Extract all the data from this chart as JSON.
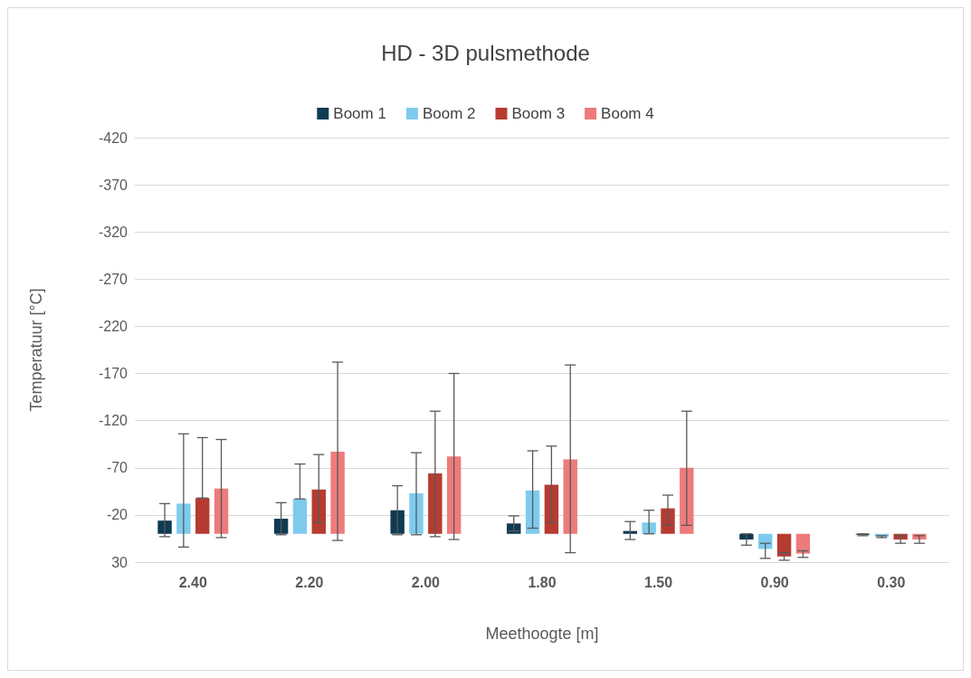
{
  "chart_data": {
    "type": "bar",
    "title": "HD - 3D pulsmethode",
    "xlabel": "Meethoogte [m]",
    "ylabel": "Temperatuur [°C]",
    "categories": [
      "2.40",
      "2.20",
      "2.00",
      "1.80",
      "1.50",
      "0.90",
      "0.30"
    ],
    "series": [
      {
        "name": "Boom 1",
        "color": "#0e3a53",
        "values": [
          -14,
          -16,
          -25,
          -11,
          -3,
          6,
          1
        ],
        "errors": [
          [
            -32,
            3
          ],
          [
            -33,
            1
          ],
          [
            -51,
            1
          ],
          [
            -19,
            -3
          ],
          [
            -13,
            6
          ],
          [
            0,
            12
          ],
          [
            0,
            2
          ]
        ]
      },
      {
        "name": "Boom 2",
        "color": "#7ecbee",
        "values": [
          -32,
          -37,
          -43,
          -46,
          -12,
          16,
          3
        ],
        "errors": [
          [
            -106,
            14
          ],
          [
            -74,
            -37
          ],
          [
            -86,
            1
          ],
          [
            -88,
            -6
          ],
          [
            -25,
            0
          ],
          [
            10,
            26
          ],
          [
            2,
            4
          ]
        ]
      },
      {
        "name": "Boom 3",
        "color": "#b63b31",
        "values": [
          -38,
          -47,
          -64,
          -52,
          -27,
          24,
          6
        ],
        "errors": [
          [
            -102,
            -38
          ],
          [
            -84,
            -12
          ],
          [
            -130,
            3
          ],
          [
            -93,
            -12
          ],
          [
            -41,
            -9
          ],
          [
            20,
            28
          ],
          [
            2,
            10
          ]
        ]
      },
      {
        "name": "Boom 4",
        "color": "#ee7b7b",
        "values": [
          -48,
          -87,
          -82,
          -79,
          -70,
          21,
          6
        ],
        "errors": [
          [
            -100,
            4
          ],
          [
            -182,
            7
          ],
          [
            -170,
            6
          ],
          [
            -179,
            20
          ],
          [
            -130,
            -9
          ],
          [
            18,
            25
          ],
          [
            2,
            10
          ]
        ]
      }
    ],
    "ylim": [
      30,
      -420
    ],
    "yticks": [
      -420,
      -370,
      -320,
      -270,
      -220,
      -170,
      -120,
      -70,
      -20,
      30
    ],
    "grid": "y",
    "legend": "top"
  }
}
